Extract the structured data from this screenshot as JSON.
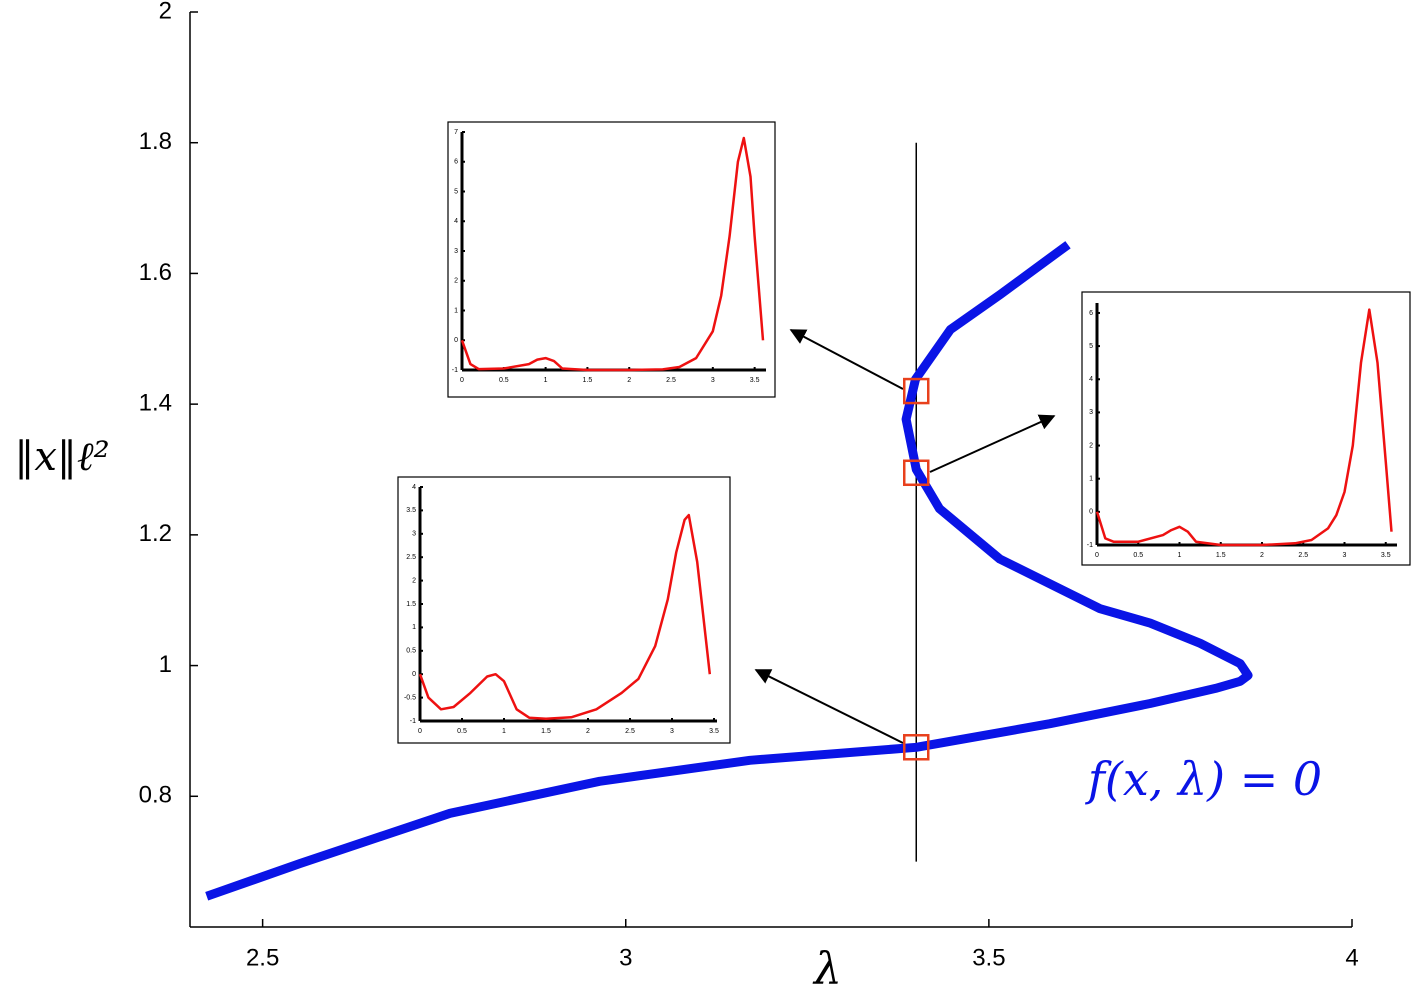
{
  "chart_data": [
    {
      "type": "line",
      "xlabel": "λ",
      "ylabel": "‖x‖ℓ²",
      "annotation": "f(x, λ) = 0",
      "xlim": [
        2.4,
        4
      ],
      "ylim": [
        0.6,
        2
      ],
      "xticks": [
        2.5,
        3,
        3.5,
        4
      ],
      "yticks": [
        0.8,
        1,
        1.2,
        1.4,
        1.6,
        1.8,
        2
      ],
      "x": [
        2.423,
        2.551,
        2.758,
        2.964,
        3.171,
        3.4,
        3.584,
        3.722,
        3.812,
        3.846,
        3.857,
        3.846,
        3.791,
        3.722,
        3.653,
        3.515,
        3.432,
        3.4,
        3.386,
        3.399,
        3.447,
        3.516,
        3.609
      ],
      "series": [
        {
          "color": "#0a14e6",
          "values": [
            0.647,
            0.697,
            0.774,
            0.823,
            0.855,
            0.875,
            0.911,
            0.942,
            0.965,
            0.976,
            0.985,
            1.003,
            1.034,
            1.065,
            1.087,
            1.163,
            1.24,
            1.3,
            1.377,
            1.438,
            1.514,
            1.568,
            1.644
          ]
        }
      ],
      "vline": {
        "x": 3.4,
        "y": [
          0.7,
          1.8
        ]
      },
      "markers": {
        "color": "#e8401c",
        "x": [
          3.4,
          3.4,
          3.4
        ],
        "y": [
          1.42,
          1.295,
          0.875
        ]
      }
    },
    {
      "type": "line",
      "xlim": [
        0,
        3.6
      ],
      "ylim": [
        -1,
        7
      ],
      "xticks": [
        0,
        0.5,
        1,
        1.5,
        2,
        2.5,
        3,
        3.5
      ],
      "yticks": [
        -1,
        0,
        1,
        2,
        3,
        4,
        5,
        6,
        7
      ],
      "x": [
        0,
        0.1,
        0.2,
        0.5,
        0.8,
        0.9,
        1.0,
        1.1,
        1.2,
        1.5,
        2,
        2.4,
        2.6,
        2.8,
        3.0,
        3.1,
        3.2,
        3.3,
        3.37,
        3.45,
        3.5,
        3.6
      ],
      "series": [
        {
          "color": "#ee1111",
          "values": [
            0,
            -0.8,
            -0.97,
            -0.95,
            -0.8,
            -0.65,
            -0.6,
            -0.7,
            -0.95,
            -1,
            -1,
            -0.98,
            -0.9,
            -0.6,
            0.3,
            1.5,
            3.5,
            6.0,
            6.8,
            5.5,
            3.5,
            0
          ]
        }
      ]
    },
    {
      "type": "line",
      "xlim": [
        0,
        3.6
      ],
      "ylim": [
        -1,
        6.3
      ],
      "xticks": [
        0,
        0.5,
        1,
        1.5,
        2,
        2.5,
        3,
        3.5
      ],
      "yticks": [
        -1,
        0,
        1,
        2,
        3,
        4,
        5,
        6
      ],
      "x": [
        0,
        0.1,
        0.2,
        0.5,
        0.8,
        0.9,
        1.0,
        1.1,
        1.2,
        1.5,
        2,
        2.4,
        2.6,
        2.8,
        2.9,
        3.0,
        3.1,
        3.2,
        3.3,
        3.4,
        3.5,
        3.57
      ],
      "series": [
        {
          "color": "#ee1111",
          "values": [
            0,
            -0.8,
            -0.9,
            -0.9,
            -0.7,
            -0.55,
            -0.45,
            -0.6,
            -0.9,
            -1,
            -1,
            -0.95,
            -0.85,
            -0.5,
            -0.1,
            0.6,
            2,
            4.5,
            6.1,
            4.5,
            1.5,
            -0.6
          ]
        }
      ]
    },
    {
      "type": "line",
      "xlim": [
        0,
        3.5
      ],
      "ylim": [
        -1,
        4
      ],
      "xticks": [
        0,
        0.5,
        1,
        1.5,
        2,
        2.5,
        3,
        3.5
      ],
      "yticks": [
        -1,
        -0.5,
        0,
        0.5,
        1,
        1.5,
        2,
        2.5,
        3,
        3.5,
        4
      ],
      "x": [
        0,
        0.1,
        0.25,
        0.4,
        0.6,
        0.8,
        0.9,
        1.0,
        1.15,
        1.3,
        1.5,
        1.8,
        2.1,
        2.4,
        2.6,
        2.8,
        2.95,
        3.05,
        3.15,
        3.2,
        3.3,
        3.45
      ],
      "series": [
        {
          "color": "#ee1111",
          "values": [
            0,
            -0.5,
            -0.75,
            -0.7,
            -0.4,
            -0.05,
            0,
            -0.15,
            -0.75,
            -0.93,
            -0.95,
            -0.92,
            -0.75,
            -0.4,
            -0.1,
            0.6,
            1.6,
            2.6,
            3.3,
            3.4,
            2.4,
            0
          ]
        }
      ]
    }
  ]
}
